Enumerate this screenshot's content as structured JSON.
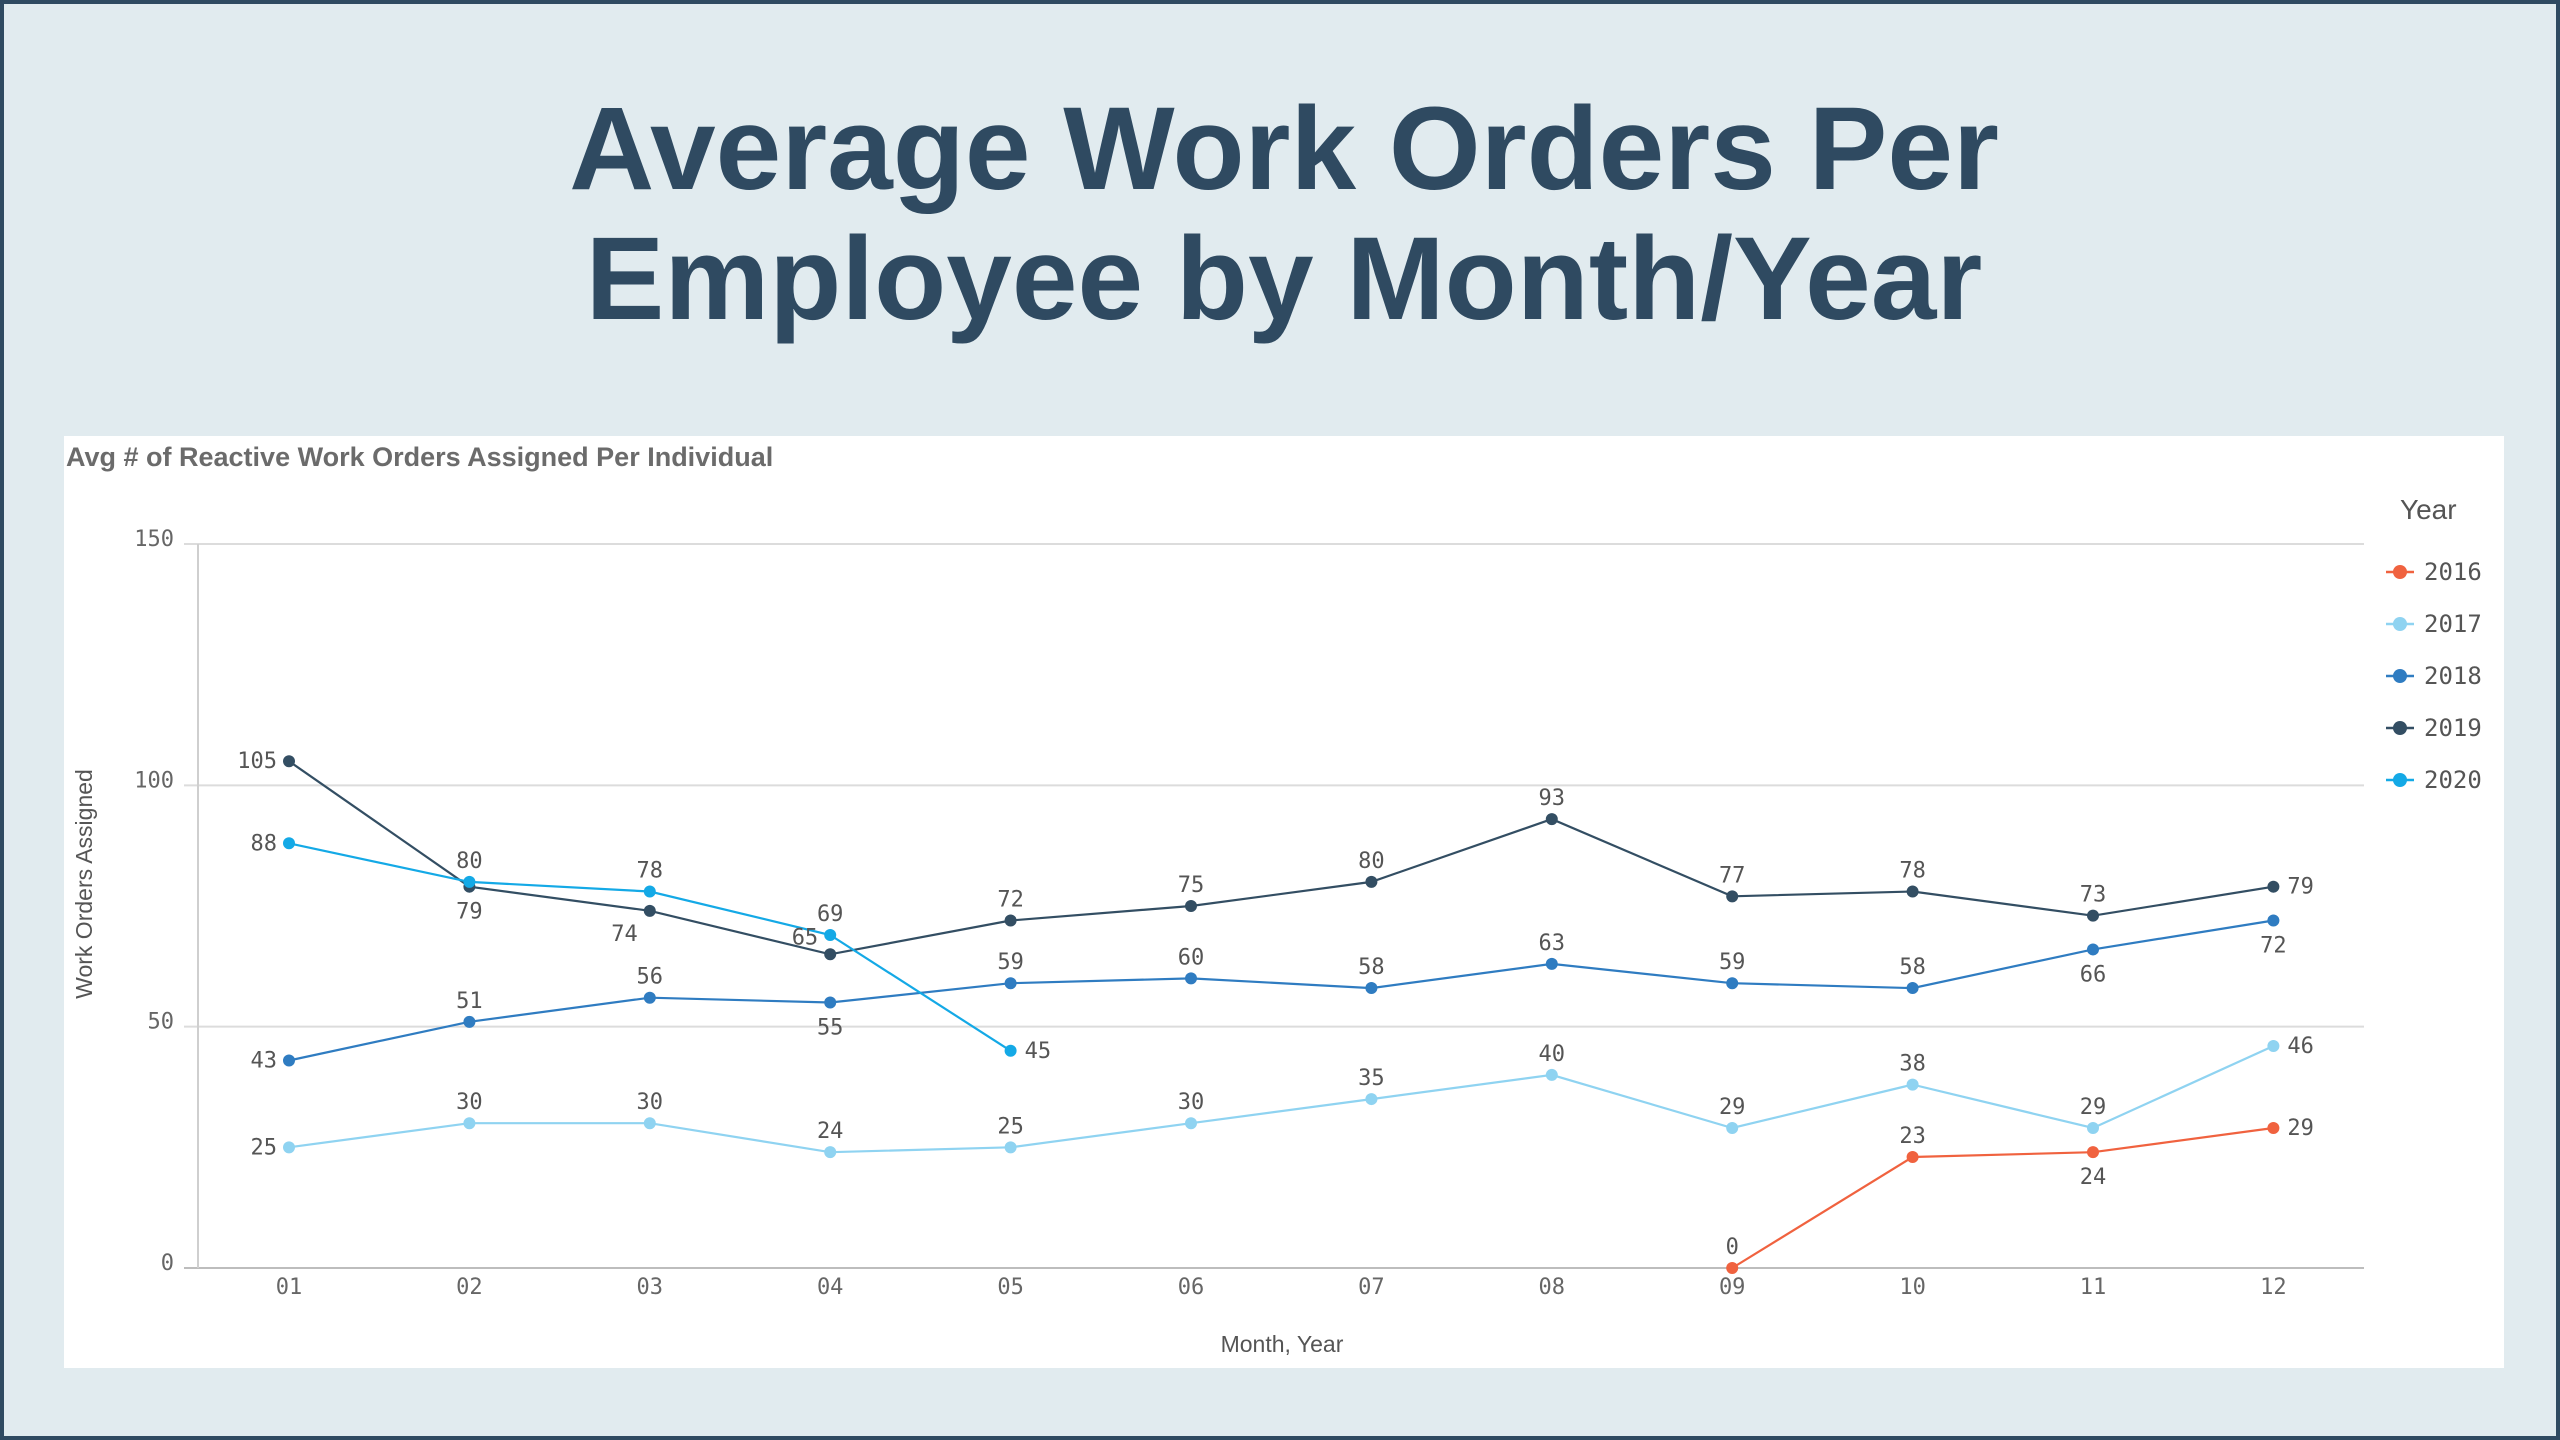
{
  "slide": {
    "title_line1": "Average Work Orders Per",
    "title_line2": "Employee by Month/Year"
  },
  "colors": {
    "frame": "#2f4a61",
    "background": "#e1ebef",
    "title": "#2f4a61"
  },
  "chart_data": {
    "type": "line",
    "title": "Avg # of Reactive Work Orders Assigned Per Individual",
    "xlabel": "Month, Year",
    "ylabel": "Work Orders Assigned",
    "categories": [
      "01",
      "02",
      "03",
      "04",
      "05",
      "06",
      "07",
      "08",
      "09",
      "10",
      "11",
      "12"
    ],
    "ylim": [
      0,
      150
    ],
    "yticks": [
      0,
      50,
      100,
      150
    ],
    "grid": true,
    "legend": {
      "title": "Year",
      "position": "right"
    },
    "series": [
      {
        "name": "2016",
        "color": "#f0623f",
        "values": [
          null,
          null,
          null,
          null,
          null,
          null,
          null,
          null,
          0,
          23,
          24,
          29
        ],
        "label_pos": [
          "",
          "",
          "",
          "",
          "",
          "",
          "",
          "",
          "above",
          "above",
          "below",
          "right"
        ]
      },
      {
        "name": "2017",
        "color": "#8fd3f1",
        "values": [
          25,
          30,
          30,
          24,
          25,
          30,
          35,
          40,
          29,
          38,
          29,
          46
        ],
        "label_pos": [
          "left",
          "above",
          "above",
          "above",
          "above",
          "above",
          "above",
          "above",
          "above",
          "above",
          "above",
          "right"
        ]
      },
      {
        "name": "2018",
        "color": "#2f7cc1",
        "values": [
          43,
          51,
          56,
          55,
          59,
          60,
          58,
          63,
          59,
          58,
          66,
          72
        ],
        "label_pos": [
          "left",
          "above",
          "above",
          "below",
          "above",
          "above",
          "above",
          "above",
          "above",
          "above",
          "below",
          "below"
        ]
      },
      {
        "name": "2019",
        "color": "#334e63",
        "values": [
          105,
          79,
          74,
          65,
          72,
          75,
          80,
          93,
          77,
          78,
          73,
          79
        ],
        "label_pos": [
          "left",
          "below",
          "belowleft",
          "aboveleft",
          "above",
          "above",
          "above",
          "above",
          "above",
          "above",
          "above",
          "right"
        ]
      },
      {
        "name": "2020",
        "color": "#14a9e6",
        "values": [
          88,
          80,
          78,
          69,
          45,
          null,
          null,
          null,
          null,
          null,
          null,
          null
        ],
        "label_pos": [
          "left",
          "above",
          "above",
          "above",
          "right",
          "",
          "",
          "",
          "",
          "",
          "",
          ""
        ]
      }
    ]
  }
}
